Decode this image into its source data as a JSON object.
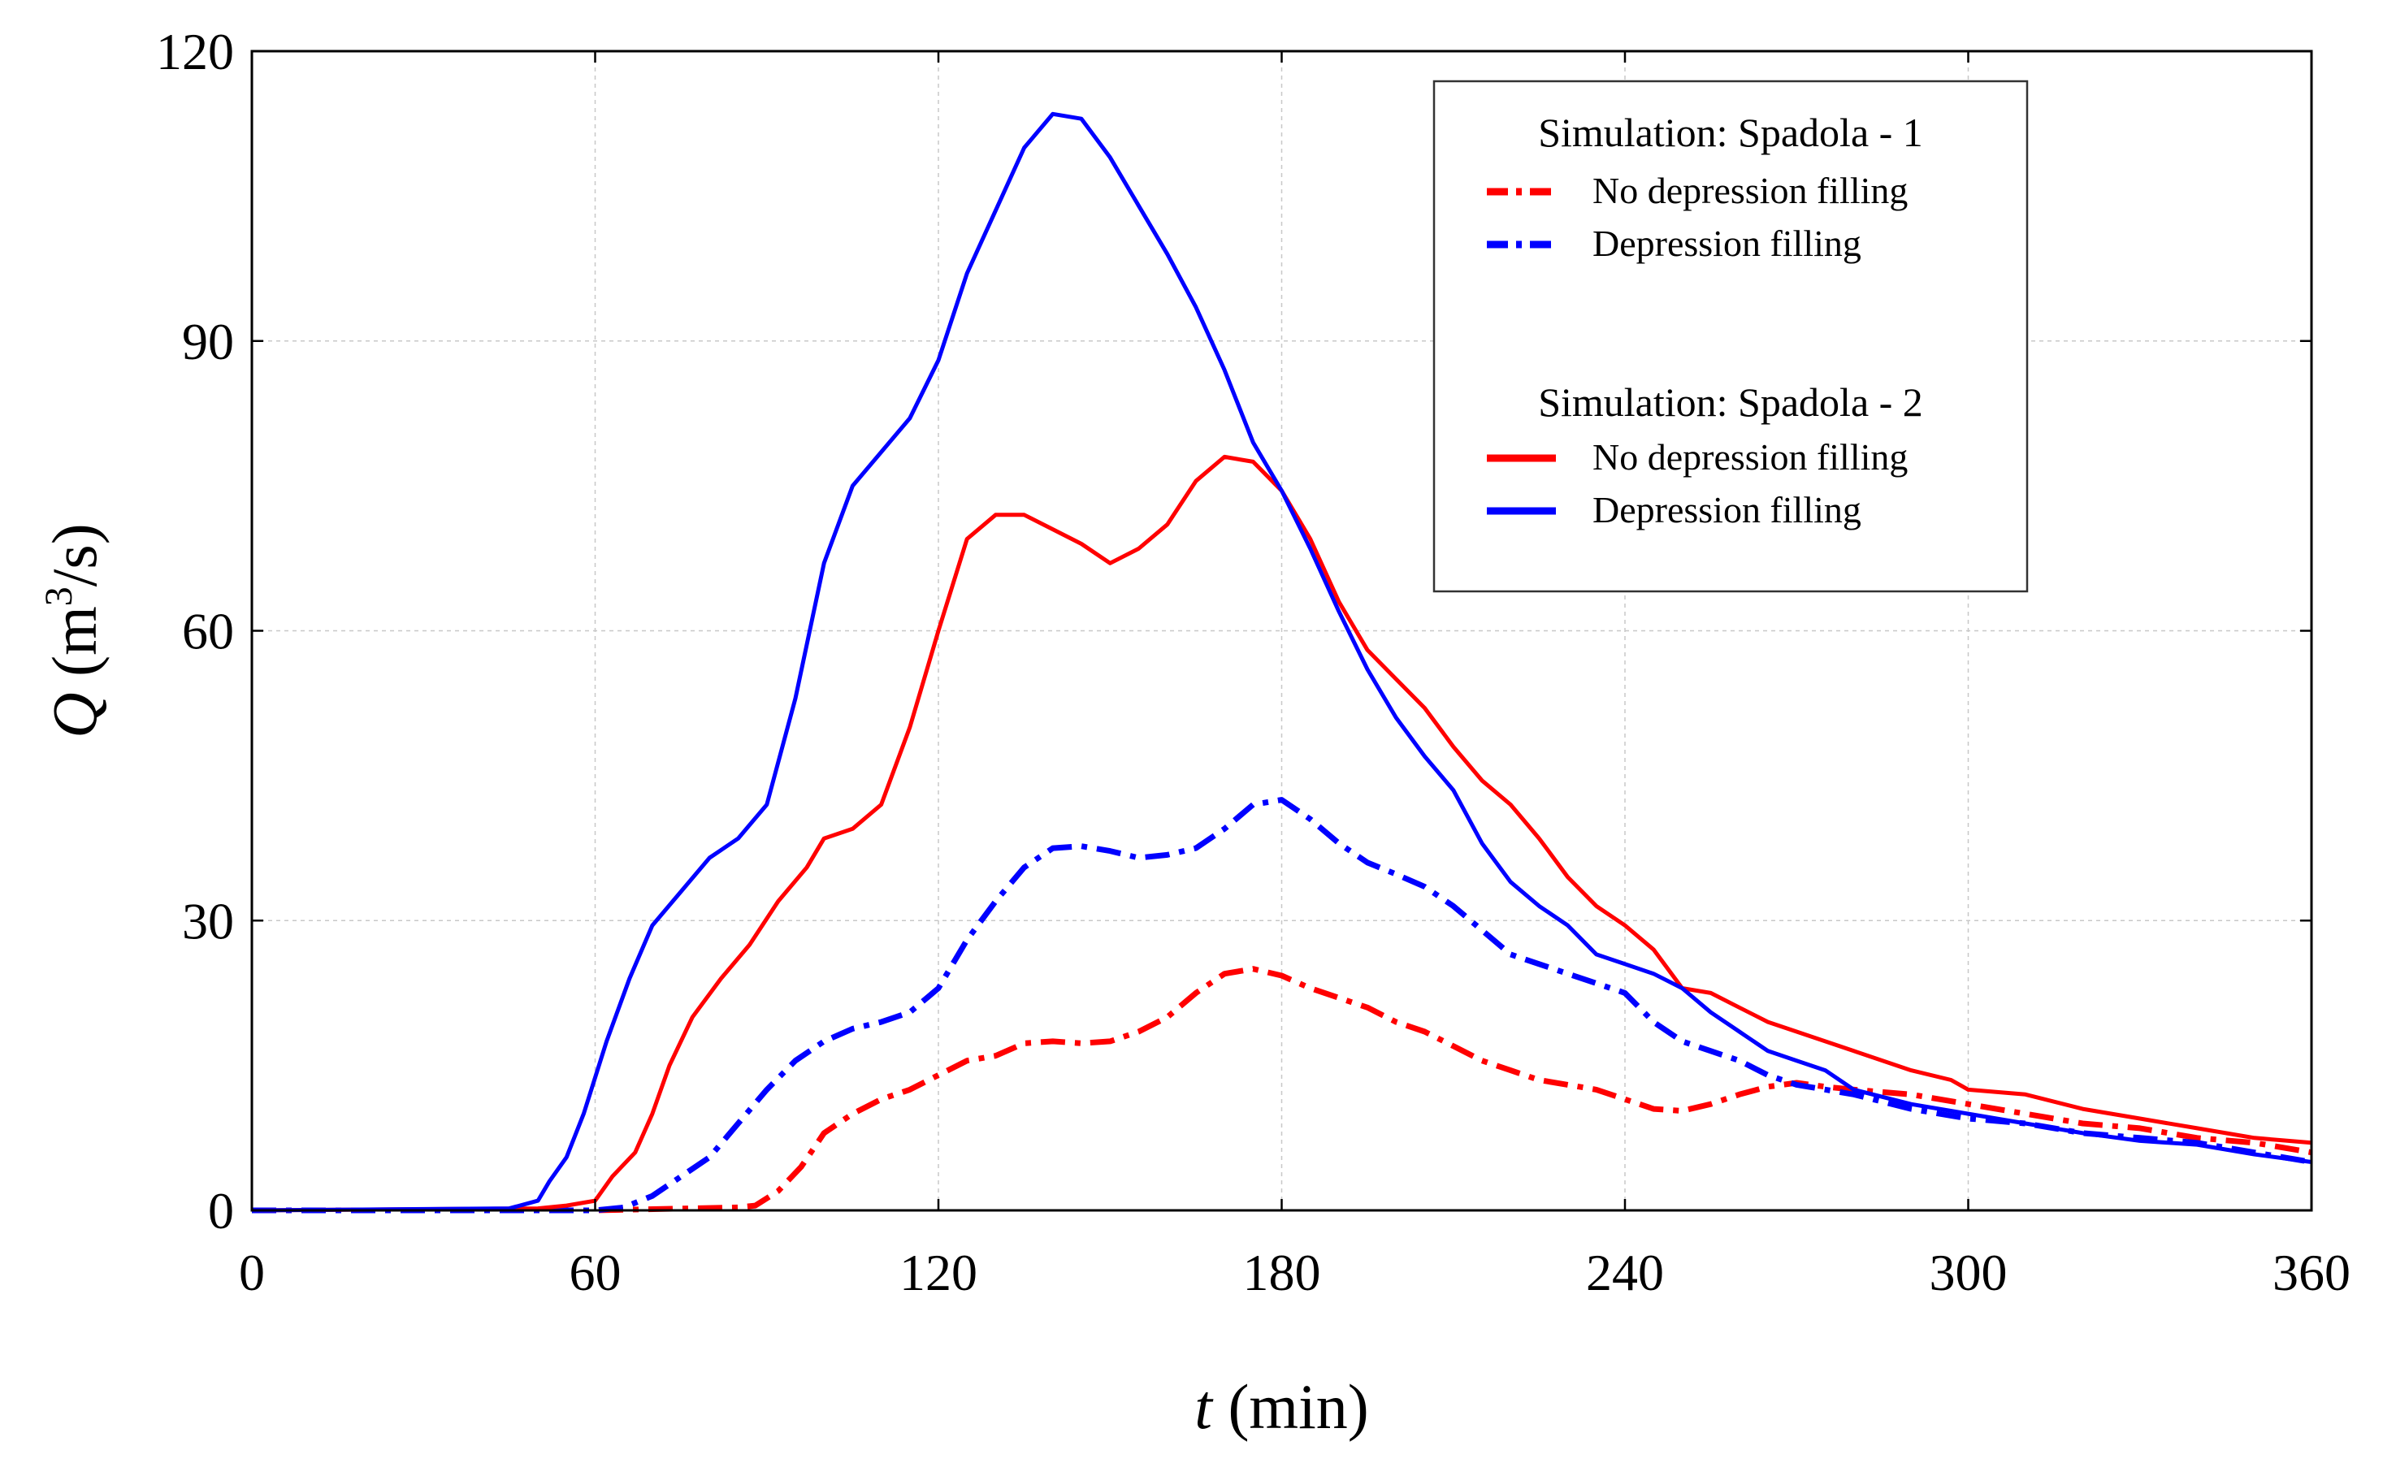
{
  "chart_data": {
    "type": "line",
    "xlabel": {
      "italic": "t",
      "rest": " (min)"
    },
    "ylabel": {
      "italic": "Q",
      "rest_pre": " (m",
      "sup": "3",
      "rest_post": "/s)"
    },
    "xlim": [
      0,
      360
    ],
    "ylim": [
      0,
      120
    ],
    "xticks": [
      0,
      60,
      120,
      180,
      240,
      300,
      360
    ],
    "yticks": [
      0,
      30,
      60,
      90,
      120
    ],
    "grid": true,
    "legend_position": "top-right",
    "legend": {
      "groups": [
        {
          "title": "Simulation: Spadola - 1",
          "entries": [
            {
              "label": "No depression filling",
              "series": 0
            },
            {
              "label": "Depression filling",
              "series": 1
            }
          ]
        },
        {
          "title": "Simulation: Spadola - 2",
          "entries": [
            {
              "label": "No depression filling",
              "series": 2
            },
            {
              "label": "Depression filling",
              "series": 3
            }
          ]
        }
      ]
    },
    "series": [
      {
        "simulation": "Spadola - 1",
        "name": "No depression filling",
        "color": "#ff0000",
        "style": "dash-dot",
        "points": [
          [
            0,
            0
          ],
          [
            60,
            0
          ],
          [
            85,
            0.3
          ],
          [
            88,
            0.5
          ],
          [
            92,
            2
          ],
          [
            96,
            4.5
          ],
          [
            100,
            8
          ],
          [
            105,
            10
          ],
          [
            110,
            11.5
          ],
          [
            115,
            12.5
          ],
          [
            120,
            14
          ],
          [
            125,
            15.5
          ],
          [
            130,
            16
          ],
          [
            135,
            17.3
          ],
          [
            140,
            17.5
          ],
          [
            145,
            17.3
          ],
          [
            150,
            17.5
          ],
          [
            155,
            18.5
          ],
          [
            160,
            20
          ],
          [
            165,
            22.5
          ],
          [
            170,
            24.5
          ],
          [
            175,
            25
          ],
          [
            180,
            24.3
          ],
          [
            185,
            23
          ],
          [
            190,
            22
          ],
          [
            195,
            21
          ],
          [
            200,
            19.5
          ],
          [
            205,
            18.5
          ],
          [
            210,
            17
          ],
          [
            215,
            15.5
          ],
          [
            220,
            14.5
          ],
          [
            225,
            13.5
          ],
          [
            230,
            13
          ],
          [
            235,
            12.5
          ],
          [
            240,
            11.5
          ],
          [
            245,
            10.5
          ],
          [
            250,
            10.3
          ],
          [
            255,
            11
          ],
          [
            260,
            12
          ],
          [
            265,
            12.8
          ],
          [
            270,
            13.2
          ],
          [
            275,
            12.8
          ],
          [
            280,
            12.5
          ],
          [
            290,
            12
          ],
          [
            300,
            11
          ],
          [
            310,
            10
          ],
          [
            320,
            9
          ],
          [
            330,
            8.5
          ],
          [
            340,
            7.5
          ],
          [
            350,
            7
          ],
          [
            360,
            6
          ]
        ]
      },
      {
        "simulation": "Spadola - 1",
        "name": "Depression filling",
        "color": "#0000ff",
        "style": "dash-dot",
        "points": [
          [
            0,
            0
          ],
          [
            60,
            0
          ],
          [
            65,
            0.3
          ],
          [
            70,
            1.5
          ],
          [
            75,
            3.5
          ],
          [
            80,
            5.5
          ],
          [
            85,
            9
          ],
          [
            90,
            12.5
          ],
          [
            95,
            15.5
          ],
          [
            100,
            17.5
          ],
          [
            105,
            18.8
          ],
          [
            110,
            19.5
          ],
          [
            115,
            20.5
          ],
          [
            120,
            23
          ],
          [
            125,
            28
          ],
          [
            130,
            32
          ],
          [
            135,
            35.5
          ],
          [
            140,
            37.5
          ],
          [
            145,
            37.7
          ],
          [
            150,
            37.2
          ],
          [
            155,
            36.5
          ],
          [
            160,
            36.8
          ],
          [
            165,
            37.5
          ],
          [
            170,
            39.5
          ],
          [
            175,
            42
          ],
          [
            180,
            42.5
          ],
          [
            185,
            40.5
          ],
          [
            190,
            38
          ],
          [
            195,
            36
          ],
          [
            200,
            34.8
          ],
          [
            205,
            33.5
          ],
          [
            210,
            31.5
          ],
          [
            215,
            29
          ],
          [
            220,
            26.5
          ],
          [
            225,
            25.5
          ],
          [
            230,
            24.5
          ],
          [
            235,
            23.5
          ],
          [
            240,
            22.5
          ],
          [
            245,
            19.5
          ],
          [
            250,
            17.5
          ],
          [
            255,
            16.5
          ],
          [
            260,
            15.5
          ],
          [
            265,
            14
          ],
          [
            270,
            13
          ],
          [
            280,
            12
          ],
          [
            290,
            10.5
          ],
          [
            300,
            9.5
          ],
          [
            310,
            9
          ],
          [
            320,
            8
          ],
          [
            330,
            7.5
          ],
          [
            340,
            7
          ],
          [
            350,
            6
          ],
          [
            360,
            5
          ]
        ]
      },
      {
        "simulation": "Spadola - 2",
        "name": "No depression filling",
        "color": "#ff0000",
        "style": "solid",
        "points": [
          [
            0,
            0
          ],
          [
            50,
            0.2
          ],
          [
            55,
            0.5
          ],
          [
            60,
            1
          ],
          [
            63,
            3.5
          ],
          [
            67,
            6
          ],
          [
            70,
            10
          ],
          [
            73,
            15
          ],
          [
            77,
            20
          ],
          [
            82,
            24
          ],
          [
            87,
            27.5
          ],
          [
            92,
            32
          ],
          [
            97,
            35.5
          ],
          [
            100,
            38.5
          ],
          [
            105,
            39.5
          ],
          [
            110,
            42
          ],
          [
            115,
            50
          ],
          [
            120,
            60
          ],
          [
            125,
            69.5
          ],
          [
            130,
            72
          ],
          [
            135,
            72
          ],
          [
            140,
            70.5
          ],
          [
            145,
            69
          ],
          [
            150,
            67
          ],
          [
            155,
            68.5
          ],
          [
            160,
            71
          ],
          [
            165,
            75.5
          ],
          [
            170,
            78
          ],
          [
            175,
            77.5
          ],
          [
            180,
            74.5
          ],
          [
            185,
            69.5
          ],
          [
            190,
            63
          ],
          [
            195,
            58
          ],
          [
            200,
            55
          ],
          [
            205,
            52
          ],
          [
            210,
            48
          ],
          [
            215,
            44.5
          ],
          [
            220,
            42
          ],
          [
            225,
            38.5
          ],
          [
            230,
            34.5
          ],
          [
            235,
            31.5
          ],
          [
            240,
            29.5
          ],
          [
            245,
            27
          ],
          [
            250,
            23
          ],
          [
            255,
            22.5
          ],
          [
            260,
            21
          ],
          [
            265,
            19.5
          ],
          [
            270,
            18.5
          ],
          [
            280,
            16.5
          ],
          [
            290,
            14.5
          ],
          [
            297,
            13.5
          ],
          [
            300,
            12.5
          ],
          [
            310,
            12
          ],
          [
            320,
            10.5
          ],
          [
            330,
            9.5
          ],
          [
            340,
            8.5
          ],
          [
            350,
            7.5
          ],
          [
            360,
            7
          ]
        ]
      },
      {
        "simulation": "Spadola - 2",
        "name": "Depression filling",
        "color": "#0000ff",
        "style": "solid",
        "points": [
          [
            0,
            0
          ],
          [
            45,
            0.2
          ],
          [
            50,
            1
          ],
          [
            52,
            3
          ],
          [
            55,
            5.5
          ],
          [
            58,
            10
          ],
          [
            62,
            17.5
          ],
          [
            66,
            24
          ],
          [
            70,
            29.5
          ],
          [
            75,
            33
          ],
          [
            80,
            36.5
          ],
          [
            85,
            38.5
          ],
          [
            90,
            42
          ],
          [
            95,
            53
          ],
          [
            100,
            67
          ],
          [
            105,
            75
          ],
          [
            110,
            78.5
          ],
          [
            115,
            82
          ],
          [
            120,
            88
          ],
          [
            125,
            97
          ],
          [
            130,
            103.5
          ],
          [
            135,
            110
          ],
          [
            140,
            113.5
          ],
          [
            145,
            113
          ],
          [
            150,
            109
          ],
          [
            155,
            104
          ],
          [
            160,
            99
          ],
          [
            165,
            93.5
          ],
          [
            170,
            87
          ],
          [
            175,
            79.5
          ],
          [
            180,
            74.5
          ],
          [
            185,
            68.5
          ],
          [
            190,
            62
          ],
          [
            195,
            56
          ],
          [
            200,
            51
          ],
          [
            205,
            47
          ],
          [
            210,
            43.5
          ],
          [
            215,
            38
          ],
          [
            220,
            34
          ],
          [
            225,
            31.5
          ],
          [
            230,
            29.5
          ],
          [
            235,
            26.5
          ],
          [
            240,
            25.5
          ],
          [
            245,
            24.5
          ],
          [
            250,
            23
          ],
          [
            255,
            20.5
          ],
          [
            260,
            18.5
          ],
          [
            265,
            16.5
          ],
          [
            270,
            15.5
          ],
          [
            275,
            14.5
          ],
          [
            280,
            12.5
          ],
          [
            290,
            11
          ],
          [
            300,
            10
          ],
          [
            310,
            9
          ],
          [
            320,
            8
          ],
          [
            330,
            7.2
          ],
          [
            340,
            6.8
          ],
          [
            350,
            5.8
          ],
          [
            360,
            5
          ]
        ]
      }
    ]
  }
}
